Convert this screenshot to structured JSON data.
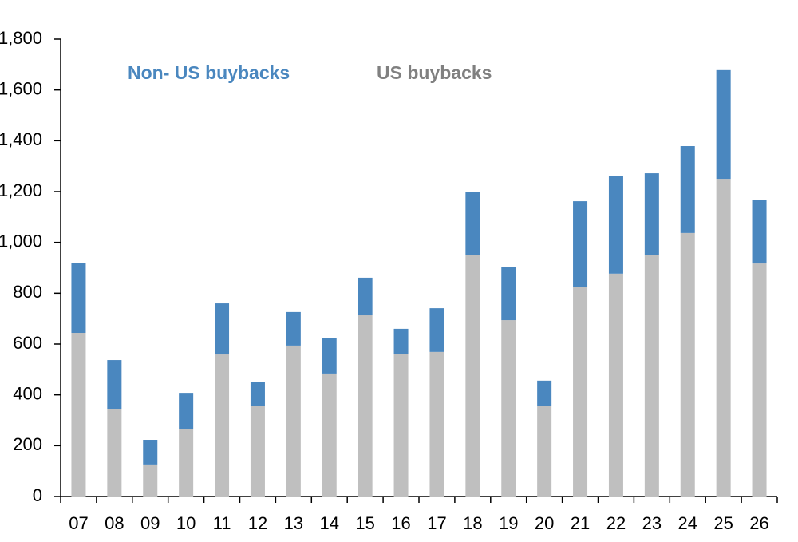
{
  "chart_data": {
    "type": "stacked_bar",
    "categories": [
      "07",
      "08",
      "09",
      "10",
      "11",
      "12",
      "13",
      "14",
      "15",
      "16",
      "17",
      "18",
      "19",
      "20",
      "21",
      "22",
      "23",
      "24",
      "25",
      "26"
    ],
    "series": [
      {
        "name": "US buybacks",
        "color": "#bfbfbf",
        "values": [
          644,
          345,
          126,
          267,
          559,
          358,
          594,
          484,
          713,
          562,
          569,
          949,
          694,
          358,
          826,
          877,
          949,
          1037,
          1250,
          917
        ]
      },
      {
        "name": "Non- US buybacks",
        "color": "#4a87bf",
        "values": [
          276,
          192,
          97,
          141,
          201,
          94,
          132,
          141,
          148,
          98,
          172,
          251,
          208,
          98,
          336,
          383,
          323,
          342,
          428,
          249
        ]
      }
    ],
    "ylim": [
      0,
      1800
    ],
    "yticks": [
      0,
      200,
      400,
      600,
      800,
      {
        "value": 1000,
        "label": "1,000"
      },
      {
        "value": 1200,
        "label": "1,200"
      },
      {
        "value": 1400,
        "label": "1,400"
      },
      {
        "value": 1600,
        "label": "1,600"
      },
      {
        "value": 1800,
        "label": "1,800"
      }
    ]
  }
}
